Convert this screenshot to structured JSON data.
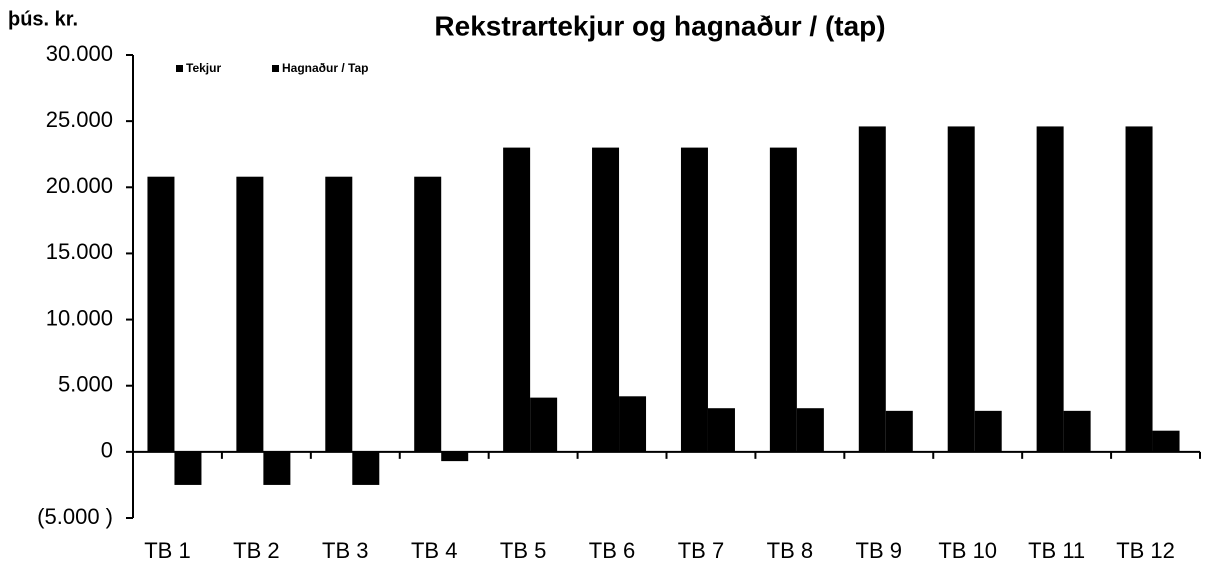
{
  "chart_data": {
    "type": "bar",
    "title": "Rekstrartekjur og hagnaður / (tap)",
    "y_label": "þús. kr.",
    "categories": [
      "TB 1",
      "TB 2",
      "TB 3",
      "TB 4",
      "TB 5",
      "TB 6",
      "TB 7",
      "TB 8",
      "TB 9",
      "TB 10",
      "TB 11",
      "TB 12"
    ],
    "series": [
      {
        "name": "Tekjur",
        "color": "#000000",
        "values": [
          20800,
          20800,
          20800,
          20800,
          23000,
          23000,
          23000,
          23000,
          24600,
          24600,
          24600,
          24600
        ]
      },
      {
        "name": "Hagnaður / Tap",
        "color": "#000000",
        "values": [
          -2500,
          -2500,
          -2500,
          -700,
          4100,
          4200,
          3300,
          3300,
          3100,
          3100,
          3100,
          1600
        ]
      }
    ],
    "ylim": [
      -5000,
      30000
    ],
    "yticks": [
      {
        "value": -5000,
        "label": "(5.000 )"
      },
      0,
      {
        "value": 5000,
        "label": "5.000"
      },
      {
        "value": 10000,
        "label": "10.000"
      },
      {
        "value": 15000,
        "label": "15.000"
      },
      {
        "value": 20000,
        "label": "20.000"
      },
      {
        "value": 25000,
        "label": "25.000"
      },
      {
        "value": 30000,
        "label": "30.000"
      }
    ],
    "grid": false,
    "legend": "top-left"
  }
}
